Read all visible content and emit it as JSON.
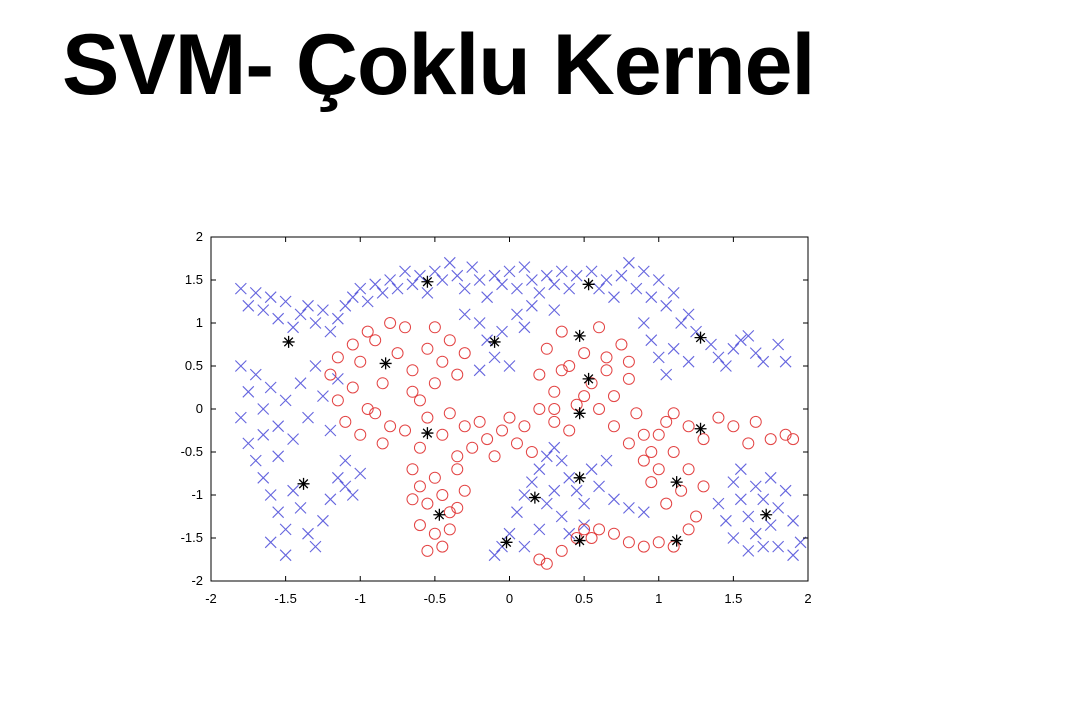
{
  "slide": {
    "title": "SVM- Çoklu Kernel"
  },
  "chart_data": {
    "type": "scatter",
    "title": "",
    "xlabel": "",
    "ylabel": "",
    "xlim": [
      -2,
      2
    ],
    "ylim": [
      -2,
      2
    ],
    "x_ticks": [
      "-2",
      "-1.5",
      "-1",
      "-0.5",
      "0",
      "0.5",
      "1",
      "1.5",
      "2"
    ],
    "y_ticks": [
      "2",
      "1.5",
      "1",
      "0.5",
      "0",
      "-0.5",
      "-1",
      "-1.5",
      "-2"
    ],
    "grid": false,
    "colors": {
      "class_x": "#4a4ad8",
      "class_o": "#e03030",
      "support_vector": "#000000"
    },
    "series": [
      {
        "marker": "x",
        "points": [
          [
            -1.8,
            1.4
          ],
          [
            -1.75,
            1.2
          ],
          [
            -1.7,
            1.35
          ],
          [
            -1.65,
            1.15
          ],
          [
            -1.6,
            1.3
          ],
          [
            -1.55,
            1.05
          ],
          [
            -1.5,
            1.25
          ],
          [
            -1.45,
            0.95
          ],
          [
            -1.4,
            1.1
          ],
          [
            -1.35,
            1.2
          ],
          [
            -1.3,
            1.0
          ],
          [
            -1.25,
            1.15
          ],
          [
            -1.2,
            0.9
          ],
          [
            -1.15,
            1.05
          ],
          [
            -1.1,
            1.2
          ],
          [
            -1.05,
            1.3
          ],
          [
            -1.0,
            1.4
          ],
          [
            -0.95,
            1.25
          ],
          [
            -0.9,
            1.45
          ],
          [
            -0.85,
            1.35
          ],
          [
            -0.8,
            1.5
          ],
          [
            -0.75,
            1.4
          ],
          [
            -0.7,
            1.6
          ],
          [
            -0.65,
            1.45
          ],
          [
            -0.6,
            1.55
          ],
          [
            -0.55,
            1.35
          ],
          [
            -0.5,
            1.6
          ],
          [
            -0.45,
            1.5
          ],
          [
            -0.4,
            1.7
          ],
          [
            -0.35,
            1.55
          ],
          [
            -0.3,
            1.4
          ],
          [
            -0.25,
            1.65
          ],
          [
            -0.2,
            1.5
          ],
          [
            -0.15,
            1.3
          ],
          [
            -0.1,
            1.55
          ],
          [
            -0.05,
            1.45
          ],
          [
            0.0,
            1.6
          ],
          [
            0.05,
            1.4
          ],
          [
            0.1,
            1.65
          ],
          [
            0.15,
            1.5
          ],
          [
            0.2,
            1.35
          ],
          [
            0.25,
            1.55
          ],
          [
            0.3,
            1.45
          ],
          [
            0.35,
            1.6
          ],
          [
            0.4,
            1.4
          ],
          [
            0.45,
            1.55
          ],
          [
            0.55,
            1.6
          ],
          [
            0.6,
            1.4
          ],
          [
            0.65,
            1.5
          ],
          [
            0.7,
            1.3
          ],
          [
            0.75,
            1.55
          ],
          [
            0.8,
            1.7
          ],
          [
            0.85,
            1.4
          ],
          [
            0.9,
            1.6
          ],
          [
            0.95,
            1.3
          ],
          [
            1.0,
            1.5
          ],
          [
            1.05,
            1.2
          ],
          [
            1.1,
            1.35
          ],
          [
            1.15,
            1.0
          ],
          [
            1.2,
            1.1
          ],
          [
            1.25,
            0.9
          ],
          [
            1.35,
            0.75
          ],
          [
            1.4,
            0.6
          ],
          [
            1.45,
            0.5
          ],
          [
            1.5,
            0.7
          ],
          [
            1.55,
            0.8
          ],
          [
            1.6,
            0.85
          ],
          [
            1.65,
            0.65
          ],
          [
            1.7,
            0.55
          ],
          [
            1.8,
            0.75
          ],
          [
            1.85,
            0.55
          ],
          [
            -0.3,
            1.1
          ],
          [
            -0.2,
            1.0
          ],
          [
            -0.15,
            0.8
          ],
          [
            -0.05,
            0.9
          ],
          [
            0.05,
            1.1
          ],
          [
            0.1,
            0.95
          ],
          [
            -0.1,
            0.6
          ],
          [
            -0.2,
            0.45
          ],
          [
            0.0,
            0.5
          ],
          [
            0.15,
            1.2
          ],
          [
            0.3,
            1.15
          ],
          [
            0.9,
            1.0
          ],
          [
            0.95,
            0.8
          ],
          [
            1.0,
            0.6
          ],
          [
            1.05,
            0.4
          ],
          [
            1.1,
            0.7
          ],
          [
            1.2,
            0.55
          ],
          [
            -1.8,
            0.5
          ],
          [
            -1.75,
            0.2
          ],
          [
            -1.7,
            0.4
          ],
          [
            -1.65,
            0.0
          ],
          [
            -1.6,
            0.25
          ],
          [
            -1.55,
            -0.2
          ],
          [
            -1.5,
            0.1
          ],
          [
            -1.45,
            -0.35
          ],
          [
            -1.4,
            0.3
          ],
          [
            -1.35,
            -0.1
          ],
          [
            -1.3,
            0.5
          ],
          [
            -1.25,
            0.15
          ],
          [
            -1.2,
            -0.25
          ],
          [
            -1.15,
            0.35
          ],
          [
            -1.8,
            -0.1
          ],
          [
            -1.75,
            -0.4
          ],
          [
            -1.7,
            -0.6
          ],
          [
            -1.65,
            -0.8
          ],
          [
            -1.6,
            -1.0
          ],
          [
            -1.55,
            -1.2
          ],
          [
            -1.5,
            -1.4
          ],
          [
            -1.45,
            -0.95
          ],
          [
            -1.4,
            -1.15
          ],
          [
            -1.35,
            -1.45
          ],
          [
            -1.3,
            -1.6
          ],
          [
            -1.25,
            -1.3
          ],
          [
            -1.2,
            -1.05
          ],
          [
            -1.15,
            -0.8
          ],
          [
            -1.1,
            -0.6
          ],
          [
            -1.05,
            -1.0
          ],
          [
            -1.6,
            -1.55
          ],
          [
            -1.5,
            -1.7
          ],
          [
            -1.55,
            -0.55
          ],
          [
            -1.65,
            -0.3
          ],
          [
            -1.1,
            -0.9
          ],
          [
            -1.0,
            -0.75
          ],
          [
            -0.1,
            -1.7
          ],
          [
            0.0,
            -1.45
          ],
          [
            0.05,
            -1.2
          ],
          [
            0.1,
            -1.0
          ],
          [
            0.15,
            -0.85
          ],
          [
            0.2,
            -0.7
          ],
          [
            0.25,
            -0.55
          ],
          [
            0.3,
            -0.45
          ],
          [
            0.35,
            -0.6
          ],
          [
            0.4,
            -0.8
          ],
          [
            0.45,
            -0.95
          ],
          [
            0.5,
            -1.1
          ],
          [
            0.55,
            -0.7
          ],
          [
            0.6,
            -0.9
          ],
          [
            0.7,
            -1.05
          ],
          [
            0.8,
            -1.15
          ],
          [
            0.9,
            -1.2
          ],
          [
            0.25,
            -1.1
          ],
          [
            0.35,
            -1.25
          ],
          [
            0.2,
            -1.4
          ],
          [
            0.1,
            -1.6
          ],
          [
            -0.05,
            -1.6
          ],
          [
            0.4,
            -1.45
          ],
          [
            0.5,
            -1.35
          ],
          [
            0.3,
            -0.95
          ],
          [
            0.65,
            -0.6
          ],
          [
            1.5,
            -0.85
          ],
          [
            1.55,
            -1.05
          ],
          [
            1.6,
            -1.25
          ],
          [
            1.65,
            -1.45
          ],
          [
            1.7,
            -1.6
          ],
          [
            1.75,
            -1.35
          ],
          [
            1.8,
            -1.15
          ],
          [
            1.85,
            -0.95
          ],
          [
            1.9,
            -1.3
          ],
          [
            1.95,
            -1.55
          ],
          [
            1.6,
            -1.65
          ],
          [
            1.5,
            -1.5
          ],
          [
            1.45,
            -1.3
          ],
          [
            1.4,
            -1.1
          ],
          [
            1.55,
            -0.7
          ],
          [
            1.65,
            -0.9
          ],
          [
            1.75,
            -0.8
          ],
          [
            1.8,
            -1.6
          ],
          [
            1.9,
            -1.7
          ],
          [
            1.7,
            -1.05
          ]
        ]
      },
      {
        "marker": "o",
        "points": [
          [
            -1.2,
            0.4
          ],
          [
            -1.15,
            0.1
          ],
          [
            -1.1,
            -0.15
          ],
          [
            -1.05,
            0.25
          ],
          [
            -1.0,
            0.55
          ],
          [
            -0.95,
            0.0
          ],
          [
            -0.9,
            0.8
          ],
          [
            -0.85,
            0.3
          ],
          [
            -0.8,
            -0.2
          ],
          [
            -0.75,
            0.65
          ],
          [
            -0.7,
            0.95
          ],
          [
            -0.65,
            0.45
          ],
          [
            -0.6,
            0.1
          ],
          [
            -0.55,
            0.7
          ],
          [
            -0.5,
            0.95
          ],
          [
            -0.45,
            0.55
          ],
          [
            -0.4,
            0.8
          ],
          [
            -0.35,
            0.4
          ],
          [
            -0.3,
            0.65
          ],
          [
            -1.05,
            0.75
          ],
          [
            -1.15,
            0.6
          ],
          [
            -0.95,
            0.9
          ],
          [
            -0.8,
            1.0
          ],
          [
            -0.65,
            0.2
          ],
          [
            -0.9,
            -0.05
          ],
          [
            -1.0,
            -0.3
          ],
          [
            -0.85,
            -0.4
          ],
          [
            -0.7,
            -0.25
          ],
          [
            -0.6,
            -0.45
          ],
          [
            -0.55,
            -0.1
          ],
          [
            -0.5,
            0.3
          ],
          [
            -0.45,
            -0.3
          ],
          [
            -0.4,
            -0.05
          ],
          [
            -0.35,
            -0.55
          ],
          [
            -0.3,
            -0.2
          ],
          [
            -0.25,
            -0.45
          ],
          [
            -0.2,
            -0.15
          ],
          [
            -0.15,
            -0.35
          ],
          [
            -0.1,
            -0.55
          ],
          [
            -0.05,
            -0.25
          ],
          [
            0.0,
            -0.1
          ],
          [
            0.05,
            -0.4
          ],
          [
            0.1,
            -0.2
          ],
          [
            0.15,
            -0.5
          ],
          [
            0.2,
            0.0
          ],
          [
            -0.65,
            -0.7
          ],
          [
            -0.6,
            -0.9
          ],
          [
            -0.55,
            -1.1
          ],
          [
            -0.5,
            -0.8
          ],
          [
            -0.45,
            -1.0
          ],
          [
            -0.4,
            -1.2
          ],
          [
            -0.35,
            -0.7
          ],
          [
            -0.3,
            -0.95
          ],
          [
            -0.5,
            -1.45
          ],
          [
            -0.45,
            -1.6
          ],
          [
            -0.55,
            -1.65
          ],
          [
            -0.4,
            -1.4
          ],
          [
            -0.6,
            -1.35
          ],
          [
            -0.35,
            -1.15
          ],
          [
            -0.65,
            -1.05
          ],
          [
            0.2,
            0.4
          ],
          [
            0.25,
            0.7
          ],
          [
            0.3,
            0.2
          ],
          [
            0.35,
            0.9
          ],
          [
            0.4,
            0.5
          ],
          [
            0.45,
            0.05
          ],
          [
            0.5,
            0.65
          ],
          [
            0.55,
            0.3
          ],
          [
            0.6,
            0.95
          ],
          [
            0.65,
            0.45
          ],
          [
            0.7,
            0.15
          ],
          [
            0.75,
            0.75
          ],
          [
            0.8,
            0.35
          ],
          [
            0.85,
            -0.05
          ],
          [
            0.9,
            -0.3
          ],
          [
            0.95,
            -0.5
          ],
          [
            1.0,
            -0.7
          ],
          [
            1.05,
            -0.15
          ],
          [
            0.3,
            0.0
          ],
          [
            0.4,
            -0.25
          ],
          [
            0.6,
            0.0
          ],
          [
            0.7,
            -0.2
          ],
          [
            0.8,
            -0.4
          ],
          [
            0.9,
            -0.6
          ],
          [
            1.0,
            -0.3
          ],
          [
            1.1,
            -0.05
          ],
          [
            1.2,
            -0.2
          ],
          [
            1.3,
            -0.35
          ],
          [
            1.4,
            -0.1
          ],
          [
            1.5,
            -0.2
          ],
          [
            1.6,
            -0.4
          ],
          [
            1.65,
            -0.15
          ],
          [
            1.75,
            -0.35
          ],
          [
            1.85,
            -0.3
          ],
          [
            1.9,
            -0.35
          ],
          [
            1.1,
            -0.5
          ],
          [
            1.2,
            -0.7
          ],
          [
            1.15,
            -0.95
          ],
          [
            1.05,
            -1.1
          ],
          [
            1.25,
            -1.25
          ],
          [
            1.3,
            -0.9
          ],
          [
            1.2,
            -1.4
          ],
          [
            1.1,
            -1.6
          ],
          [
            1.0,
            -1.55
          ],
          [
            0.9,
            -1.6
          ],
          [
            0.8,
            -1.55
          ],
          [
            0.7,
            -1.45
          ],
          [
            0.6,
            -1.4
          ],
          [
            0.5,
            -1.4
          ],
          [
            0.45,
            -1.5
          ],
          [
            0.35,
            -1.65
          ],
          [
            0.25,
            -1.8
          ],
          [
            0.2,
            -1.75
          ],
          [
            0.55,
            -1.5
          ],
          [
            0.3,
            -0.15
          ],
          [
            0.5,
            0.15
          ],
          [
            0.65,
            0.6
          ],
          [
            0.8,
            0.55
          ],
          [
            0.35,
            0.45
          ],
          [
            0.95,
            -0.85
          ]
        ]
      },
      {
        "marker": "*",
        "points": [
          [
            -0.55,
            1.48
          ],
          [
            0.53,
            1.45
          ],
          [
            -1.48,
            0.78
          ],
          [
            -0.1,
            0.78
          ],
          [
            0.47,
            0.85
          ],
          [
            1.28,
            0.83
          ],
          [
            -0.83,
            0.53
          ],
          [
            0.53,
            0.35
          ],
          [
            0.47,
            -0.05
          ],
          [
            -0.55,
            -0.28
          ],
          [
            1.28,
            -0.23
          ],
          [
            0.47,
            -0.8
          ],
          [
            1.12,
            -0.85
          ],
          [
            -1.38,
            -0.87
          ],
          [
            0.17,
            -1.03
          ],
          [
            -0.47,
            -1.23
          ],
          [
            1.72,
            -1.23
          ],
          [
            -0.02,
            -1.55
          ],
          [
            0.47,
            -1.53
          ],
          [
            1.12,
            -1.53
          ]
        ]
      }
    ]
  }
}
